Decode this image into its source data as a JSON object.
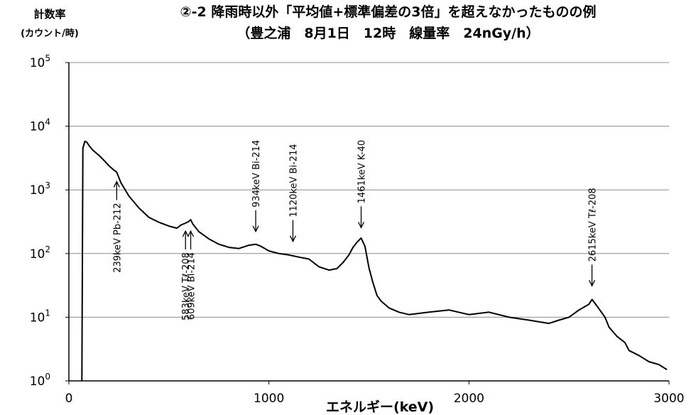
{
  "chart_data": {
    "type": "line",
    "title": "②-2 降雨時以外「平均値+標準偏差の3倍」を超えなかったものの例",
    "subtitle": "（豊之浦　8月1日　12時　線量率　24nGy/h）",
    "ylabel": "計数率",
    "ylabel_unit": "(カウント/時)",
    "xlabel": "エネルギー(keV)",
    "xlim": [
      0,
      3000
    ],
    "ylim": [
      1,
      100000
    ],
    "y_scale": "log",
    "grid": "horizontal",
    "x_ticks": [
      0,
      1000,
      2000,
      3000
    ],
    "y_ticks": [
      {
        "value": 1,
        "base": "10",
        "exp": "0"
      },
      {
        "value": 10,
        "base": "10",
        "exp": "1"
      },
      {
        "value": 100,
        "base": "10",
        "exp": "2"
      },
      {
        "value": 1000,
        "base": "10",
        "exp": "3"
      },
      {
        "value": 10000,
        "base": "10",
        "exp": "4"
      },
      {
        "value": 100000,
        "base": "10",
        "exp": "5"
      }
    ],
    "series": [
      {
        "color": "#000000",
        "x": [
          65,
          70,
          80,
          90,
          100,
          120,
          150,
          180,
          200,
          220,
          239,
          260,
          300,
          350,
          400,
          450,
          500,
          540,
          560,
          583,
          600,
          609,
          620,
          650,
          700,
          750,
          800,
          850,
          900,
          934,
          960,
          1000,
          1050,
          1100,
          1120,
          1150,
          1200,
          1250,
          1300,
          1340,
          1370,
          1400,
          1420,
          1440,
          1461,
          1480,
          1500,
          1520,
          1540,
          1560,
          1600,
          1650,
          1700,
          1800,
          1900,
          2000,
          2100,
          2200,
          2300,
          2400,
          2450,
          2500,
          2550,
          2600,
          2615,
          2640,
          2680,
          2700,
          2740,
          2780,
          2800,
          2850,
          2900,
          2950,
          2990
        ],
        "y": [
          1,
          4500,
          5800,
          5600,
          5000,
          4200,
          3500,
          2800,
          2400,
          2100,
          1900,
          1300,
          800,
          520,
          370,
          310,
          270,
          250,
          280,
          300,
          320,
          340,
          290,
          220,
          170,
          140,
          125,
          120,
          135,
          140,
          130,
          110,
          100,
          95,
          92,
          88,
          82,
          62,
          55,
          58,
          72,
          95,
          125,
          150,
          175,
          130,
          60,
          35,
          22,
          18,
          14,
          12,
          11,
          12,
          13,
          11,
          12,
          10,
          9,
          8,
          9,
          10,
          13,
          16,
          19,
          15,
          10,
          7,
          5,
          4,
          3,
          2.5,
          2,
          1.8,
          1.5
        ]
      }
    ],
    "annotations": [
      {
        "text": "239keV Pb-212",
        "x": 239,
        "y": 1500
      },
      {
        "text": "583keV Tℓ-208",
        "x": 583,
        "y": 250
      },
      {
        "text": "609keV Bi-214",
        "x": 609,
        "y": 250
      },
      {
        "text": "934keV Bi-214",
        "x": 934,
        "y": 200
      },
      {
        "text": "1120keV Bi-214",
        "x": 1120,
        "y": 140
      },
      {
        "text": "1461keV K-40",
        "x": 1461,
        "y": 230
      },
      {
        "text": "2615keV Tℓ-208",
        "x": 2615,
        "y": 28
      }
    ]
  }
}
